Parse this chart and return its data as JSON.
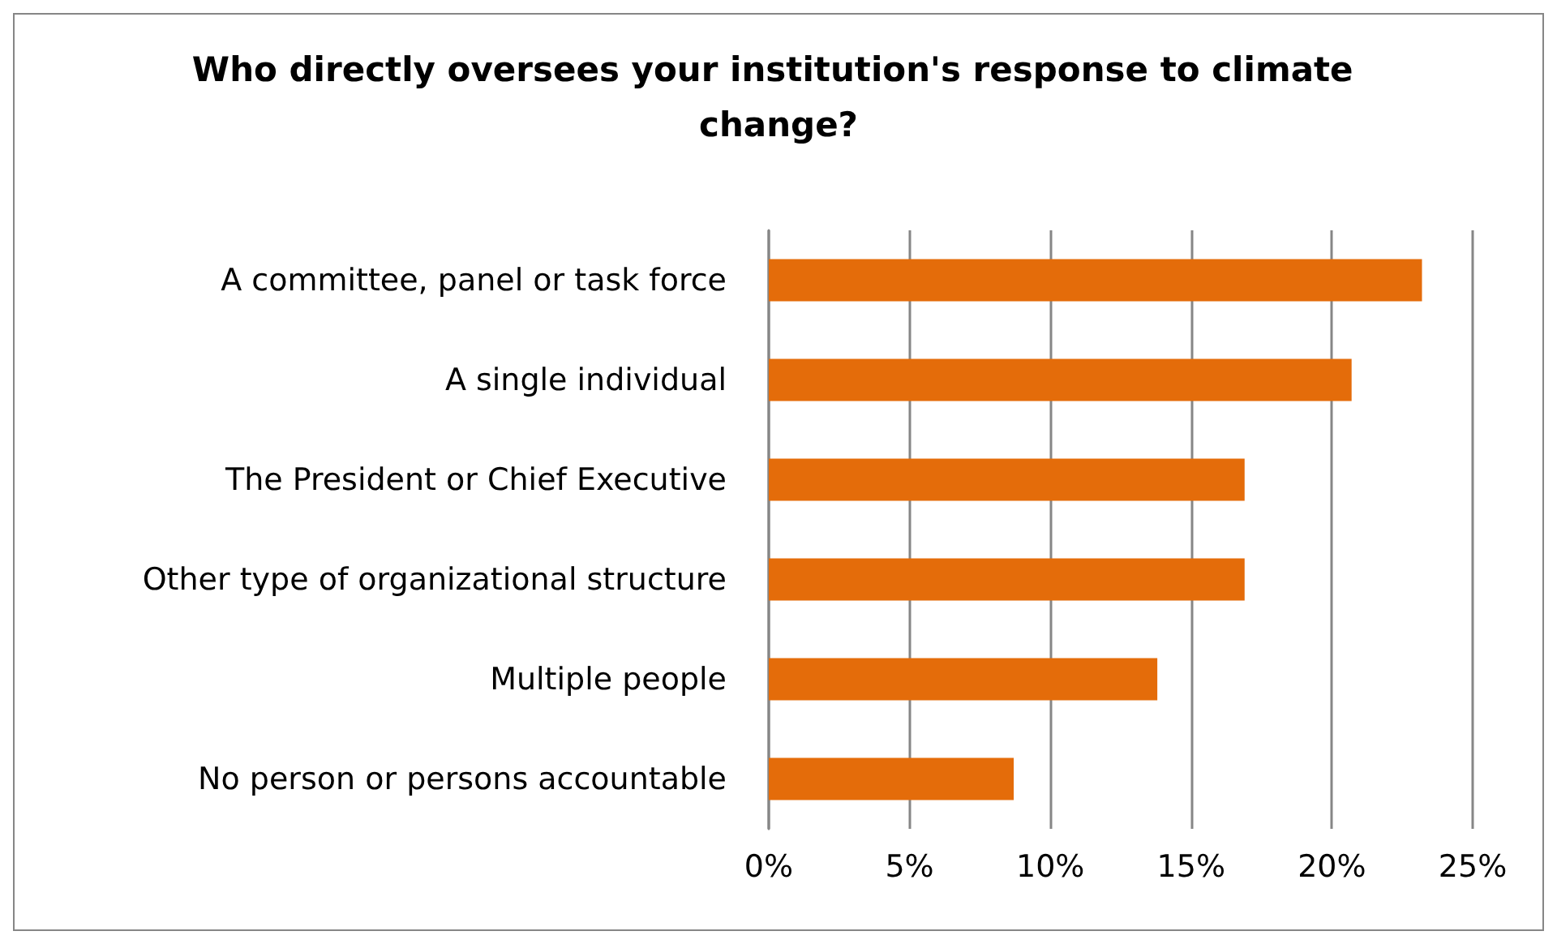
{
  "chart_data": {
    "type": "bar",
    "orientation": "horizontal",
    "title": "Who directly oversees your institution's response to climate change?",
    "categories": [
      "A committee, panel or task force",
      "A single individual",
      "The President or Chief Executive",
      "Other type of organizational structure",
      "Multiple people",
      "No person or persons accountable"
    ],
    "values": [
      23.2,
      20.7,
      16.9,
      16.9,
      13.8,
      8.7
    ],
    "color": "#e46c0a",
    "xlim": [
      0,
      25
    ],
    "xticks": [
      {
        "value": 0,
        "label": "0%"
      },
      {
        "value": 5,
        "label": "5%"
      },
      {
        "value": 10,
        "label": "10%"
      },
      {
        "value": 15,
        "label": "15%"
      },
      {
        "value": 20,
        "label": "20%"
      },
      {
        "value": 25,
        "label": "25%"
      }
    ],
    "grid": "x"
  }
}
